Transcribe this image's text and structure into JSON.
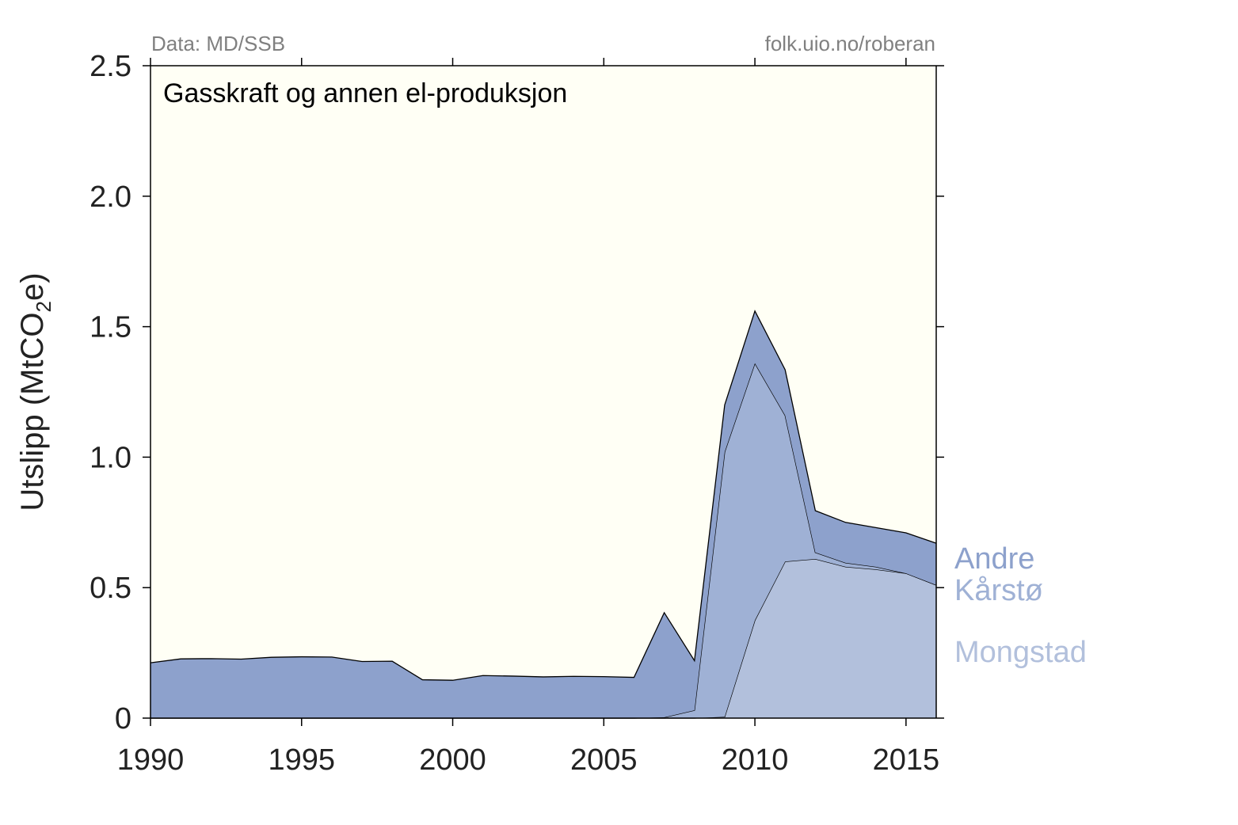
{
  "chart_data": {
    "type": "area",
    "title": "Gasskraft og annen el-produksjon",
    "source_left": "Data: MD/SSB",
    "source_right": "folk.uio.no/roberan",
    "ylabel_main": "Utslipp (MtCO",
    "ylabel_sub": "2",
    "ylabel_end": "e)",
    "xlim": [
      1990,
      2016
    ],
    "ylim": [
      0,
      2.5
    ],
    "x_ticks": [
      1990,
      1995,
      2000,
      2005,
      2010,
      2015
    ],
    "y_ticks": [
      {
        "value": 0,
        "label": "0"
      },
      {
        "value": 0.5,
        "label": "0.5"
      },
      {
        "value": 1.0,
        "label": "1.0"
      },
      {
        "value": 1.5,
        "label": "1.5"
      },
      {
        "value": 2.0,
        "label": "2.0"
      },
      {
        "value": 2.5,
        "label": "2.5"
      }
    ],
    "stacked": true,
    "x": [
      1990,
      1991,
      1992,
      1993,
      1994,
      1995,
      1996,
      1997,
      1998,
      1999,
      2000,
      2001,
      2002,
      2003,
      2004,
      2005,
      2006,
      2007,
      2008,
      2009,
      2010,
      2011,
      2012,
      2013,
      2014,
      2015,
      2016
    ],
    "series": [
      {
        "name": "Mongstad",
        "color": "#b2c0dc",
        "values": [
          0,
          0,
          0,
          0,
          0,
          0,
          0,
          0,
          0,
          0,
          0,
          0,
          0,
          0,
          0,
          0,
          0,
          0,
          0,
          0.005,
          0.375,
          0.6,
          0.61,
          0.58,
          0.57,
          0.555,
          0.51
        ]
      },
      {
        "name": "Kårstø",
        "color": "#9fb1d5",
        "values": [
          0,
          0,
          0,
          0,
          0,
          0,
          0,
          0,
          0,
          0,
          0,
          0,
          0,
          0,
          0,
          0,
          0,
          0.003,
          0.03,
          1.015,
          0.985,
          0.56,
          0.025,
          0.015,
          0.01,
          0.0,
          0.0
        ]
      },
      {
        "name": "Andre",
        "color": "#8da1cc",
        "values": [
          0.212,
          0.227,
          0.228,
          0.226,
          0.233,
          0.235,
          0.234,
          0.217,
          0.218,
          0.147,
          0.145,
          0.163,
          0.161,
          0.158,
          0.16,
          0.159,
          0.156,
          0.401,
          0.19,
          0.18,
          0.2,
          0.175,
          0.16,
          0.155,
          0.15,
          0.155,
          0.16
        ]
      }
    ],
    "colors": {
      "plot_background": "#fffff5",
      "page_background": "#ffffff",
      "outline": "#000000"
    }
  }
}
